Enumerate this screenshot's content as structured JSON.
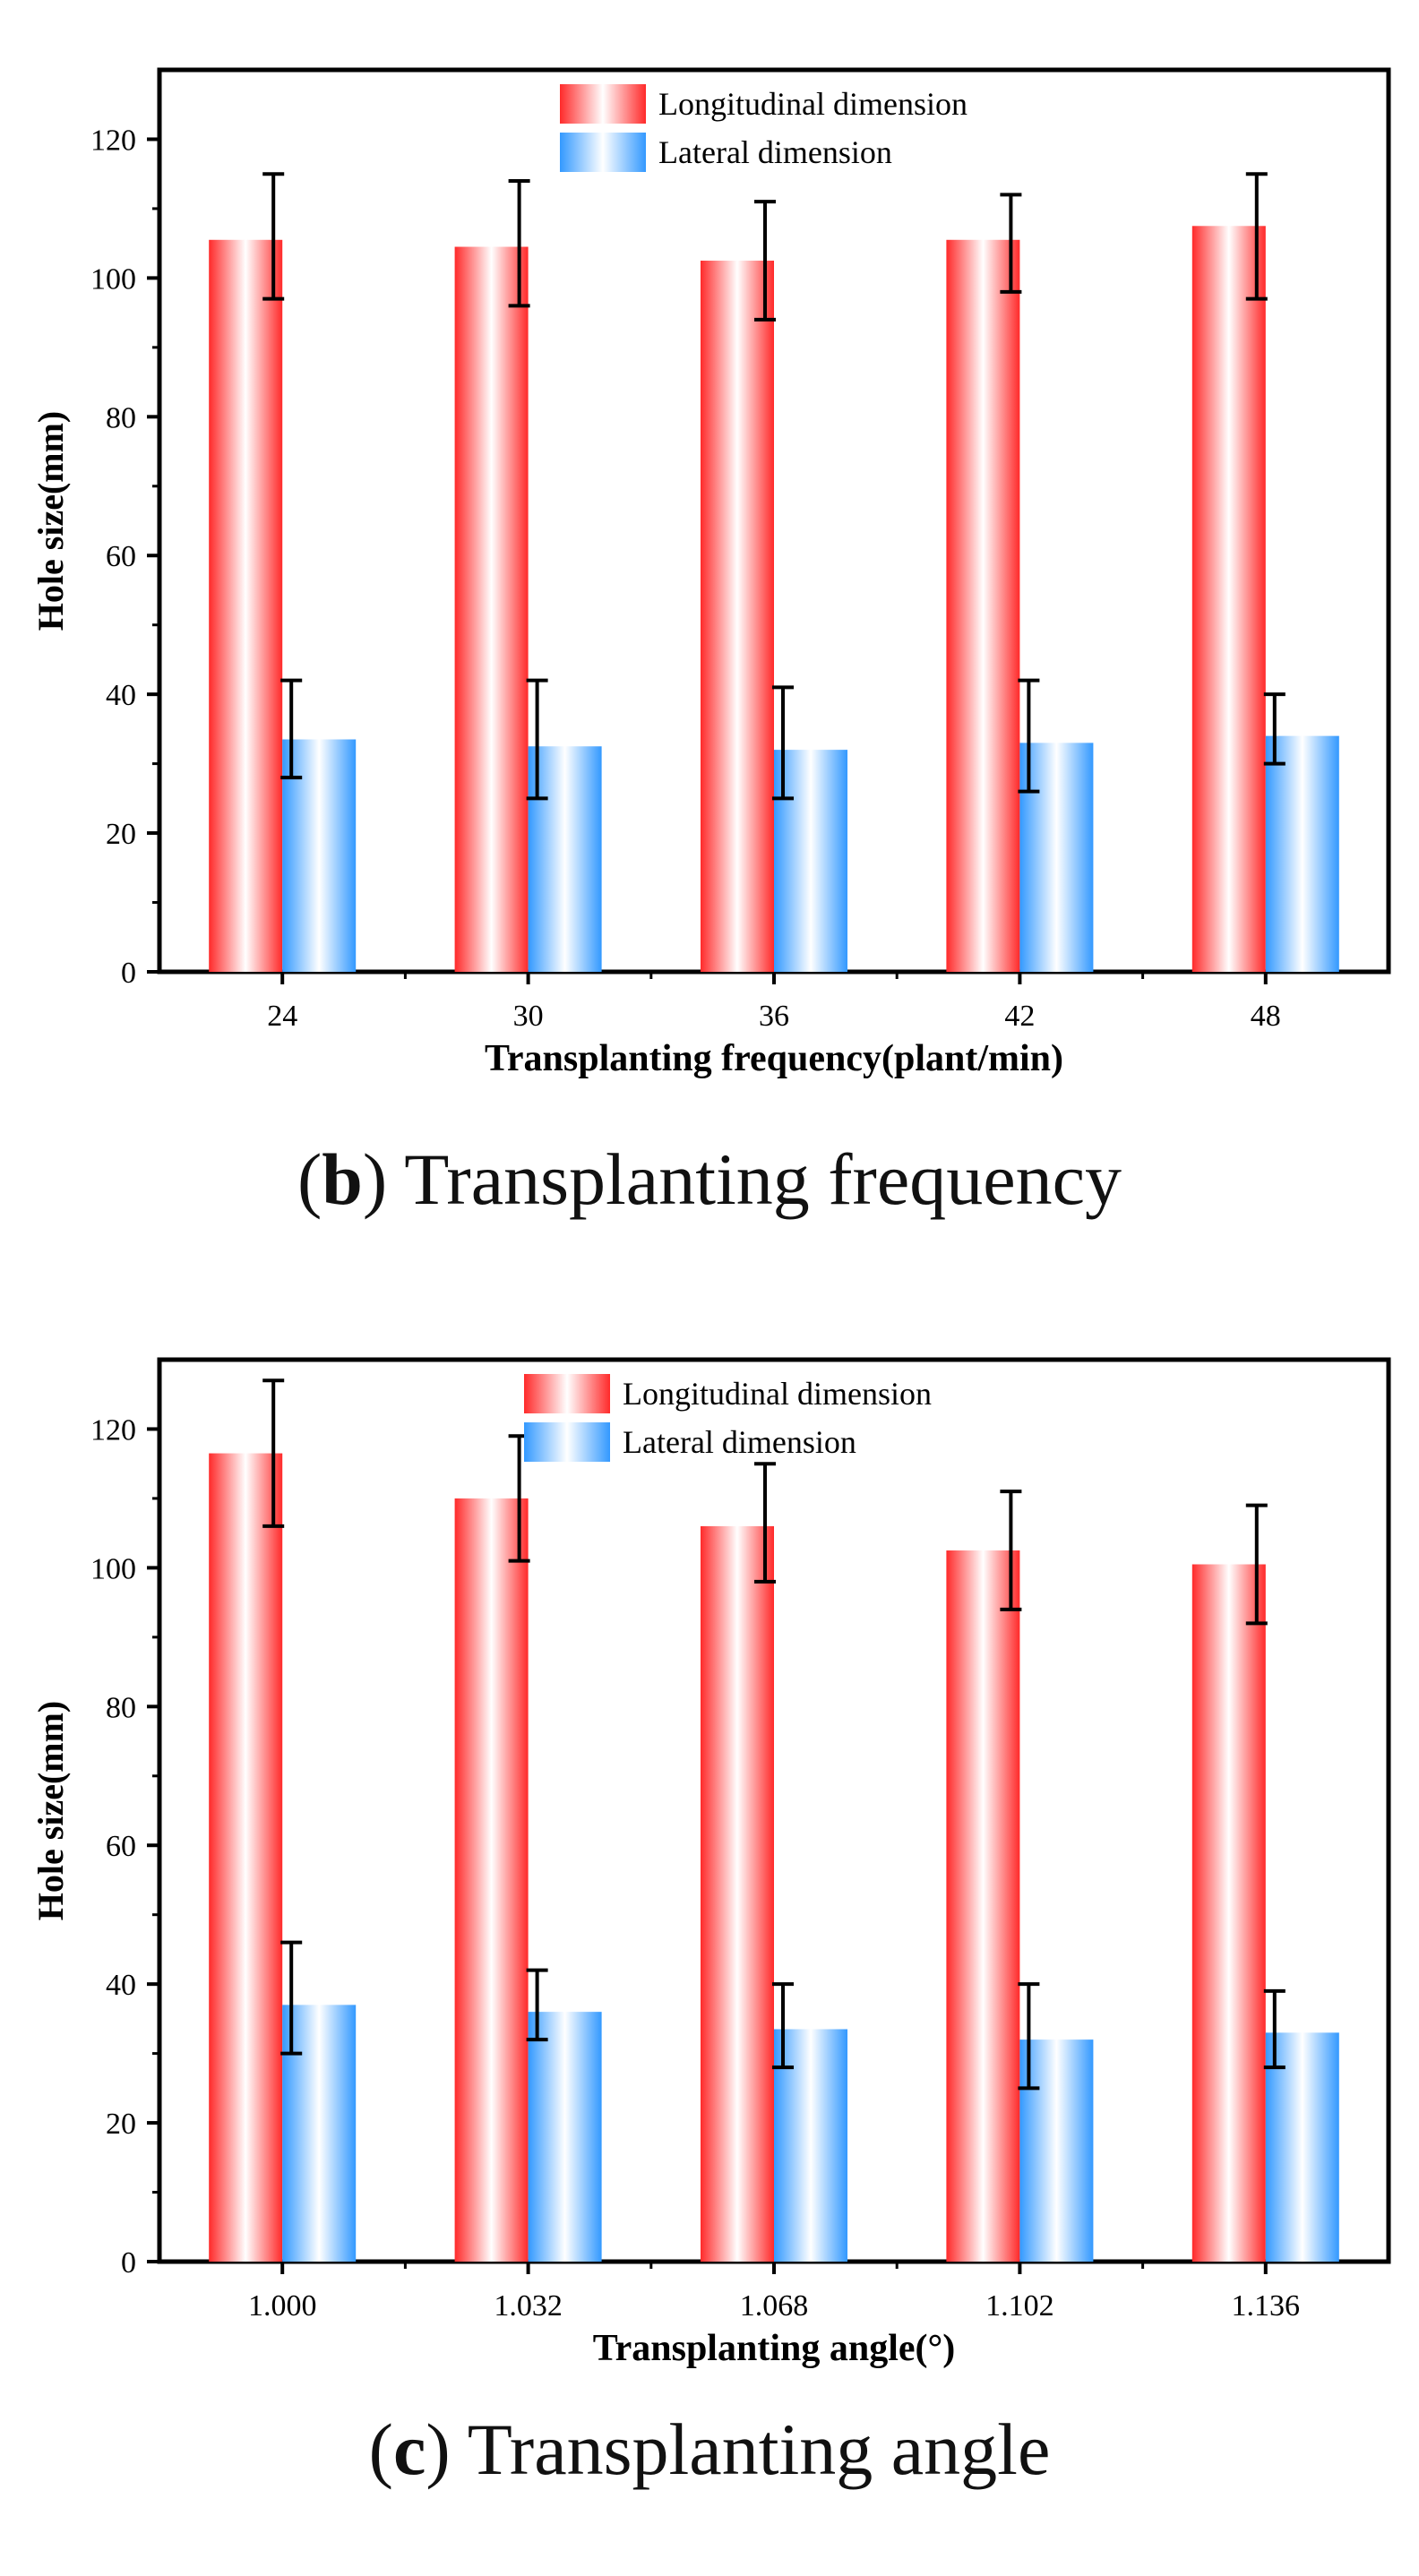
{
  "chart_data": [
    {
      "type": "bar",
      "ylabel": "Hole size(mm)",
      "xlabel": "Transplanting frequency(plant/min)",
      "categories": [
        "24",
        "30",
        "36",
        "42",
        "48"
      ],
      "yticks": [
        "0",
        "20",
        "40",
        "60",
        "80",
        "100",
        "120"
      ],
      "ylim": [
        0,
        130
      ],
      "legend_position": "top-center",
      "series": [
        {
          "name": "Longitudinal dimension",
          "color": "#ff2a2a",
          "values": [
            105.5,
            104.5,
            102.5,
            105.5,
            107.5
          ],
          "error_low": [
            97,
            96,
            94,
            98,
            97
          ],
          "error_high": [
            115,
            114,
            111,
            112,
            115
          ]
        },
        {
          "name": "Lateral dimension",
          "color": "#3399ff",
          "values": [
            33.5,
            32.5,
            32,
            33,
            34
          ],
          "error_low": [
            28,
            25,
            25,
            26,
            30
          ],
          "error_high": [
            42,
            42,
            41,
            42,
            40
          ]
        }
      ],
      "caption": {
        "letter": "b",
        "text": " Transplanting frequency"
      }
    },
    {
      "type": "bar",
      "ylabel": "Hole size(mm)",
      "xlabel": "Transplanting angle(°)",
      "categories": [
        "1.000",
        "1.032",
        "1.068",
        "1.102",
        "1.136"
      ],
      "yticks": [
        "0",
        "20",
        "40",
        "60",
        "80",
        "100",
        "120"
      ],
      "ylim": [
        0,
        130
      ],
      "legend_position": "top-center",
      "series": [
        {
          "name": "Longitudinal dimension",
          "color": "#ff2a2a",
          "values": [
            116.5,
            110,
            106,
            102.5,
            100.5
          ],
          "error_low": [
            106,
            101,
            98,
            94,
            92
          ],
          "error_high": [
            127,
            119,
            115,
            111,
            109
          ]
        },
        {
          "name": "Lateral dimension",
          "color": "#3399ff",
          "values": [
            37,
            36,
            33.5,
            32,
            33
          ],
          "error_low": [
            30,
            32,
            28,
            25,
            28
          ],
          "error_high": [
            46,
            42,
            40,
            40,
            39
          ]
        }
      ],
      "caption": {
        "letter": "c",
        "text": " Transplanting angle"
      }
    }
  ]
}
